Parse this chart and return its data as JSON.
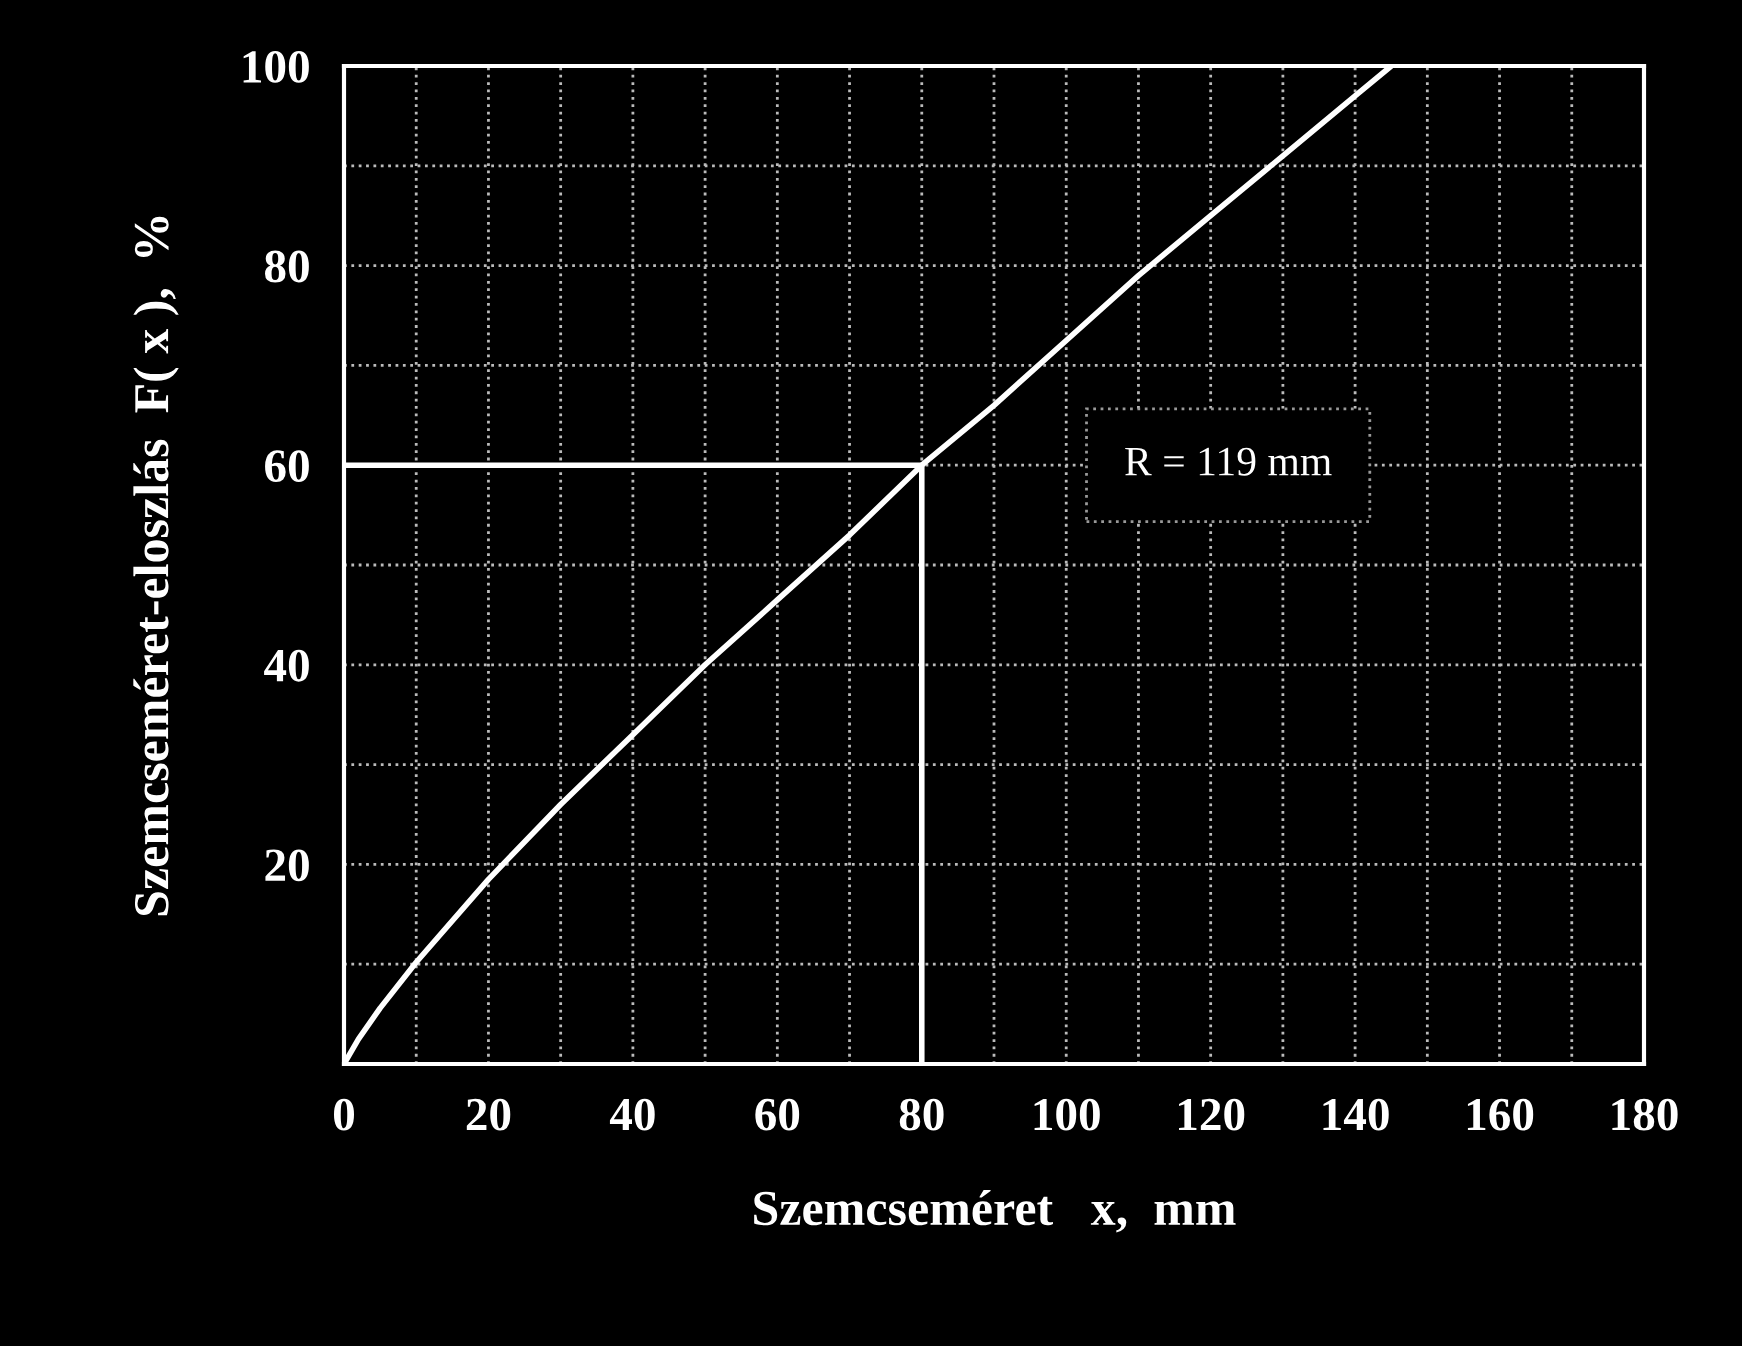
{
  "chart_data": {
    "type": "line",
    "xlabel": "Szemcseméret   x,  mm",
    "ylabel": "Szemcseméret-eloszlás  F( x ),  %",
    "series": [
      {
        "color": "#ffffff",
        "x": [
          0,
          2,
          5,
          10,
          20,
          30,
          40,
          50,
          60,
          70,
          80,
          90,
          100,
          110,
          120,
          130,
          140,
          145
        ],
        "values": [
          0,
          2.5,
          5.6,
          10.2,
          18.5,
          26,
          33,
          40,
          46.5,
          53,
          60,
          66,
          72.5,
          79,
          85,
          91,
          97,
          100
        ]
      },
      {
        "color": "#ffffff",
        "x": [
          0,
          80,
          80
        ],
        "values": [
          60,
          60,
          0
        ]
      }
    ],
    "annotations": [
      "R = 119 mm"
    ],
    "xlim": [
      0,
      180
    ],
    "ylim": [
      0,
      100
    ],
    "xticks": [
      0,
      {
        "value": 10,
        "label": null
      },
      20,
      {
        "value": 30,
        "label": null
      },
      40,
      {
        "value": 50,
        "label": null
      },
      60,
      {
        "value": 70,
        "label": null
      },
      80,
      {
        "value": 90,
        "label": null
      },
      100,
      {
        "value": 110,
        "label": null
      },
      120,
      {
        "value": 130,
        "label": null
      },
      140,
      {
        "value": 150,
        "label": null
      },
      160,
      {
        "value": 170,
        "label": null
      },
      180
    ],
    "yticks": [
      {
        "value": 0,
        "label": null
      },
      {
        "value": 10,
        "label": null
      },
      20,
      {
        "value": 30,
        "label": null
      },
      40,
      {
        "value": 50,
        "label": null
      },
      60,
      {
        "value": 70,
        "label": null
      },
      80,
      {
        "value": 90,
        "label": null
      },
      100
    ],
    "grid": true
  }
}
